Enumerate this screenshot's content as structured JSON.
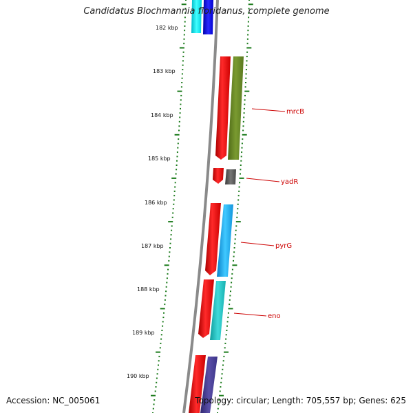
{
  "title": "Candidatus Blochmannia floridanus, complete genome",
  "accession": "Accession: NC_005061",
  "topology": "Topology: circular; Length: 705,557 bp; Genes: 625",
  "kbp_labels": [
    "182 kbp",
    "183 kbp",
    "184 kbp",
    "185 kbp",
    "186 kbp",
    "187 kbp",
    "188 kbp",
    "189 kbp",
    "190 kbp"
  ],
  "gene_labels": [
    "mrcB",
    "yadR",
    "pyrG",
    "eno"
  ],
  "colors": {
    "backbone": "#8a8a8a",
    "tick": "#1a7a1a",
    "label_line": "#cc0000",
    "forward": "#ee0000",
    "mrcB": "#6b8e23",
    "yadR": "#555555",
    "pyrG": "#1eaaf0",
    "eno": "#20c0c0",
    "next_gene": "#483d8b",
    "top_cyan": "#00e5ee",
    "top_blue": "#0000ee"
  }
}
